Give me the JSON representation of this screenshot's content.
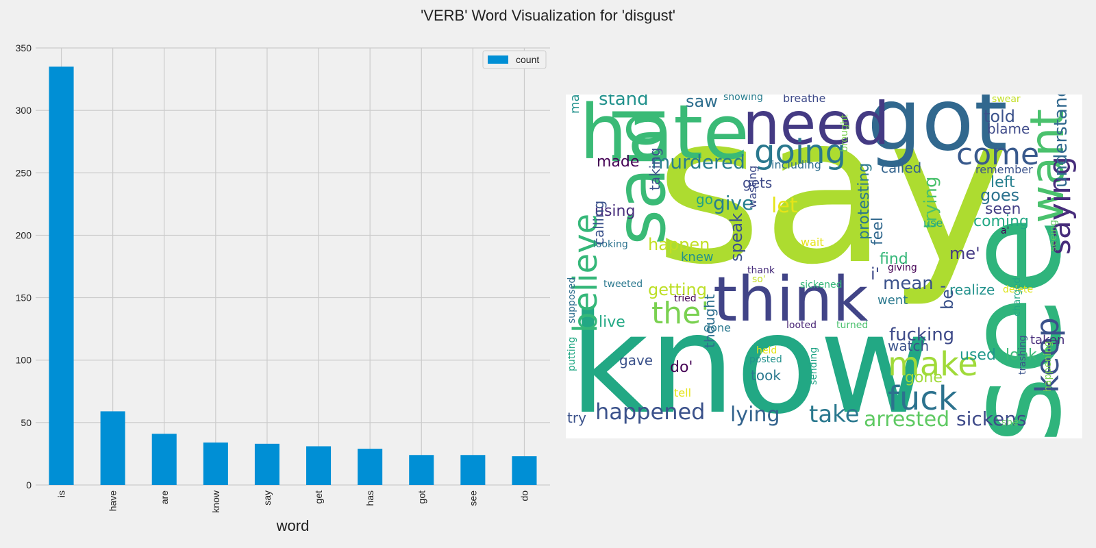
{
  "title": "'VERB' Word Visualization for 'disgust'",
  "chart_data": [
    {
      "type": "bar",
      "categories": [
        "is",
        "have",
        "are",
        "know",
        "say",
        "get",
        "has",
        "got",
        "see",
        "do"
      ],
      "series": [
        {
          "name": "count",
          "values": [
            335,
            59,
            41,
            34,
            33,
            31,
            29,
            24,
            24,
            23
          ],
          "color": "#008fd5"
        }
      ],
      "xlabel": "word",
      "ylabel": "",
      "ylim": [
        0,
        350
      ],
      "yticks": [
        0,
        50,
        100,
        150,
        200,
        250,
        300,
        350
      ],
      "grid": true,
      "legend": "top-right"
    },
    {
      "type": "wordcloud",
      "words": [
        {
          "text": "say",
          "color": "#addc30"
        },
        {
          "text": "know",
          "color": "#22a884"
        },
        {
          "text": "see",
          "color": "#2fb47c"
        },
        {
          "text": "hate",
          "color": "#3aba76"
        },
        {
          "text": "got",
          "color": "#31688e"
        },
        {
          "text": "need",
          "color": "#443a83"
        },
        {
          "text": "think",
          "color": "#414487"
        },
        {
          "text": "said",
          "color": "#3aba76"
        },
        {
          "text": "want",
          "color": "#4ac16d"
        },
        {
          "text": "going",
          "color": "#2a788e"
        },
        {
          "text": "believe",
          "color": "#35b779"
        },
        {
          "text": "come",
          "color": "#38598c"
        },
        {
          "text": "make",
          "color": "#a0da39"
        },
        {
          "text": "keep",
          "color": "#3b528b"
        },
        {
          "text": "saying",
          "color": "#472d7b"
        },
        {
          "text": "fuck",
          "color": "#2c728e"
        },
        {
          "text": "the'",
          "color": "#7ad151"
        },
        {
          "text": "happened",
          "color": "#3b528b"
        },
        {
          "text": "take",
          "color": "#2a788e"
        },
        {
          "text": "arrested",
          "color": "#5ec962"
        },
        {
          "text": "sickens",
          "color": "#3e4a89"
        },
        {
          "text": "murdered",
          "color": "#287d8e"
        },
        {
          "text": "give",
          "color": "#277f8e"
        },
        {
          "text": "let",
          "color": "#e5e419"
        },
        {
          "text": "lying",
          "color": "#33638d"
        },
        {
          "text": "understand",
          "color": "#31688e"
        },
        {
          "text": "trying",
          "color": "#4ac16d"
        },
        {
          "text": "fucking",
          "color": "#3e4a89"
        },
        {
          "text": "mean",
          "color": "#3b528b"
        },
        {
          "text": "stand",
          "color": "#21918c"
        },
        {
          "text": "saw",
          "color": "#2e6e8e"
        },
        {
          "text": "happen",
          "color": "#c2df23"
        },
        {
          "text": "getting",
          "color": "#bddf26"
        },
        {
          "text": "speak",
          "color": "#3b528b"
        },
        {
          "text": "protesting",
          "color": "#2a788e"
        },
        {
          "text": "goes",
          "color": "#2c728e"
        },
        {
          "text": "coming",
          "color": "#22a884"
        },
        {
          "text": "told",
          "color": "#3b528b"
        },
        {
          "text": "blame",
          "color": "#3e4a89"
        },
        {
          "text": "called",
          "color": "#33638d"
        },
        {
          "text": "left",
          "color": "#277f8e"
        },
        {
          "text": "seen",
          "color": "#433e85"
        },
        {
          "text": "realize",
          "color": "#21918c"
        },
        {
          "text": "used",
          "color": "#1f988b"
        },
        {
          "text": "look",
          "color": "#3aba76"
        },
        {
          "text": "gone",
          "color": "#a0da39"
        },
        {
          "text": "watch",
          "color": "#3b528b"
        },
        {
          "text": "took",
          "color": "#2a788e"
        },
        {
          "text": "made",
          "color": "#440154"
        },
        {
          "text": "using",
          "color": "#472d7b"
        },
        {
          "text": "taking",
          "color": "#3b528b"
        },
        {
          "text": "making",
          "color": "#21918c"
        },
        {
          "text": "calling",
          "color": "#3b528b"
        },
        {
          "text": "feel",
          "color": "#31688e"
        },
        {
          "text": "me'",
          "color": "#443a83"
        },
        {
          "text": "find",
          "color": "#35b779"
        },
        {
          "text": "live",
          "color": "#22a884"
        },
        {
          "text": "gave",
          "color": "#3b528b"
        },
        {
          "text": "do'",
          "color": "#440154"
        },
        {
          "text": "thought",
          "color": "#2e6e8e"
        },
        {
          "text": "be'",
          "color": "#3b528b"
        },
        {
          "text": "i'",
          "color": "#3e4a89"
        },
        {
          "text": "went",
          "color": "#2a788e"
        },
        {
          "text": "taken",
          "color": "#472d7b"
        },
        {
          "text": "try",
          "color": "#3b528b"
        },
        {
          "text": "knew",
          "color": "#21918c"
        },
        {
          "text": "gets",
          "color": "#3e4a89"
        },
        {
          "text": "go",
          "color": "#20a386"
        },
        {
          "text": "done",
          "color": "#2a788e"
        },
        {
          "text": "tell",
          "color": "#e5e419"
        },
        {
          "text": "showing",
          "color": "#287d8e"
        },
        {
          "text": "breathe",
          "color": "#3e4a89"
        },
        {
          "text": "swear",
          "color": "#c2df23"
        },
        {
          "text": "including",
          "color": "#2e6e8e"
        },
        {
          "text": "brought",
          "color": "#7ad151"
        },
        {
          "text": "remember",
          "color": "#3b528b"
        },
        {
          "text": "wasting",
          "color": "#3e4a89"
        },
        {
          "text": "use",
          "color": "#22a884"
        },
        {
          "text": "wait",
          "color": "#e5e419"
        },
        {
          "text": "looking",
          "color": "#2c728e"
        },
        {
          "text": "thank",
          "color": "#472d7b"
        },
        {
          "text": "so'",
          "color": "#c2df23"
        },
        {
          "text": "giving",
          "color": "#440154"
        },
        {
          "text": "a'",
          "color": "#440154"
        },
        {
          "text": "seeing",
          "color": "#5ec962"
        },
        {
          "text": "tweeted",
          "color": "#2a788e"
        },
        {
          "text": "sickened",
          "color": "#35b779"
        },
        {
          "text": "tried",
          "color": "#440154"
        },
        {
          "text": "delete",
          "color": "#dde318"
        },
        {
          "text": "looted",
          "color": "#482475"
        },
        {
          "text": "turned",
          "color": "#4ac16d"
        },
        {
          "text": "held",
          "color": "#e5e419"
        },
        {
          "text": "posted",
          "color": "#21918c"
        },
        {
          "text": "supposed",
          "color": "#2e6e8e"
        },
        {
          "text": "putting",
          "color": "#22a884"
        },
        {
          "text": "sending",
          "color": "#20a386"
        },
        {
          "text": "charged",
          "color": "#22a884"
        },
        {
          "text": "trashing",
          "color": "#3b528b"
        },
        {
          "text": "happening",
          "color": "#7ad151"
        },
        {
          "text": "she'",
          "color": "#5ec962"
        }
      ]
    }
  ]
}
